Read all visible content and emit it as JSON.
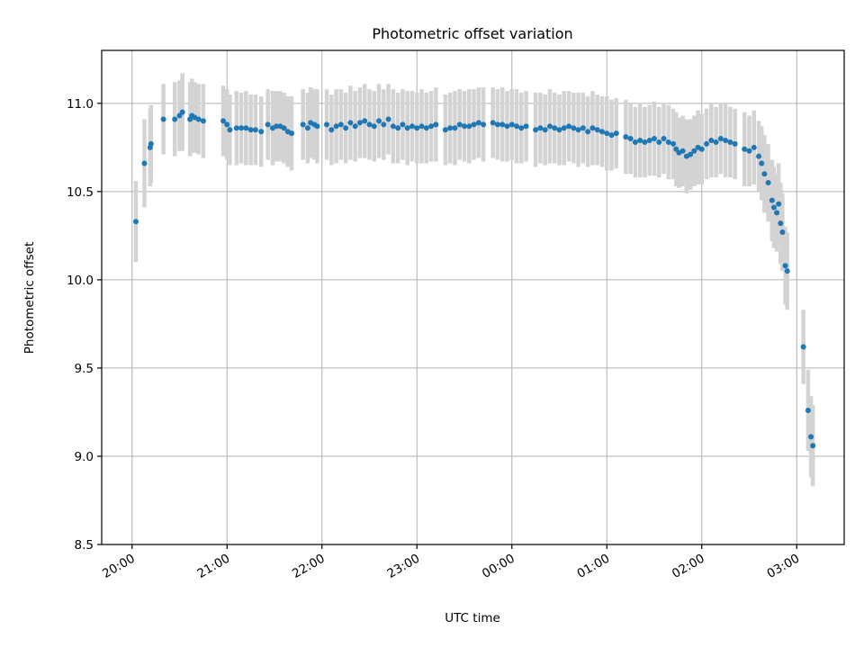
{
  "chart_data": {
    "type": "scatter",
    "title": "Photometric offset variation",
    "xlabel": "UTC time",
    "ylabel": "Photometric offset",
    "x_unit": "hours UTC (values >= 24 are after midnight)",
    "xlim": [
      19.68,
      27.5
    ],
    "ylim": [
      8.5,
      11.3
    ],
    "xticks": [
      {
        "value": 20,
        "label": "20:00"
      },
      {
        "value": 21,
        "label": "21:00"
      },
      {
        "value": 22,
        "label": "22:00"
      },
      {
        "value": 23,
        "label": "23:00"
      },
      {
        "value": 24,
        "label": "00:00"
      },
      {
        "value": 25,
        "label": "01:00"
      },
      {
        "value": 26,
        "label": "02:00"
      },
      {
        "value": 27,
        "label": "03:00"
      }
    ],
    "yticks": [
      {
        "value": 8.5,
        "label": "8.5"
      },
      {
        "value": 9.0,
        "label": "9.0"
      },
      {
        "value": 9.5,
        "label": "9.5"
      },
      {
        "value": 10.0,
        "label": "10.0"
      },
      {
        "value": 10.5,
        "label": "10.5"
      },
      {
        "value": 11.0,
        "label": "11.0"
      }
    ],
    "grid": true,
    "colors": {
      "points": "#1f77b4",
      "errorbars": "#d3d3d3",
      "grid": "#b0b0b0"
    },
    "series": [
      {
        "points": [
          [
            20.04,
            10.33,
            0.23
          ],
          [
            20.13,
            10.66,
            0.25
          ],
          [
            20.19,
            10.75,
            0.22
          ],
          [
            20.2,
            10.77,
            0.22
          ],
          [
            20.33,
            10.91,
            0.2
          ],
          [
            20.45,
            10.91,
            0.21
          ],
          [
            20.5,
            10.93,
            0.2
          ],
          [
            20.53,
            10.95,
            0.22
          ],
          [
            20.61,
            10.91,
            0.21
          ],
          [
            20.63,
            10.93,
            0.21
          ],
          [
            20.66,
            10.92,
            0.2
          ],
          [
            20.7,
            10.91,
            0.2
          ],
          [
            20.75,
            10.9,
            0.21
          ],
          [
            20.96,
            10.9,
            0.2
          ],
          [
            21.0,
            10.88,
            0.2
          ],
          [
            21.03,
            10.85,
            0.2
          ],
          [
            21.1,
            10.86,
            0.21
          ],
          [
            21.15,
            10.86,
            0.2
          ],
          [
            21.2,
            10.86,
            0.21
          ],
          [
            21.25,
            10.85,
            0.2
          ],
          [
            21.3,
            10.85,
            0.2
          ],
          [
            21.36,
            10.84,
            0.2
          ],
          [
            21.43,
            10.88,
            0.2
          ],
          [
            21.48,
            10.86,
            0.21
          ],
          [
            21.52,
            10.87,
            0.2
          ],
          [
            21.56,
            10.87,
            0.2
          ],
          [
            21.6,
            10.86,
            0.2
          ],
          [
            21.64,
            10.84,
            0.2
          ],
          [
            21.68,
            10.83,
            0.21
          ],
          [
            21.8,
            10.88,
            0.2
          ],
          [
            21.85,
            10.86,
            0.2
          ],
          [
            21.88,
            10.89,
            0.2
          ],
          [
            21.92,
            10.88,
            0.2
          ],
          [
            21.95,
            10.87,
            0.21
          ],
          [
            22.05,
            10.88,
            0.2
          ],
          [
            22.1,
            10.85,
            0.2
          ],
          [
            22.15,
            10.87,
            0.21
          ],
          [
            22.2,
            10.88,
            0.2
          ],
          [
            22.25,
            10.86,
            0.2
          ],
          [
            22.3,
            10.89,
            0.21
          ],
          [
            22.35,
            10.87,
            0.2
          ],
          [
            22.4,
            10.89,
            0.2
          ],
          [
            22.45,
            10.9,
            0.21
          ],
          [
            22.5,
            10.88,
            0.2
          ],
          [
            22.55,
            10.87,
            0.2
          ],
          [
            22.6,
            10.9,
            0.21
          ],
          [
            22.65,
            10.88,
            0.2
          ],
          [
            22.7,
            10.91,
            0.2
          ],
          [
            22.75,
            10.87,
            0.21
          ],
          [
            22.8,
            10.86,
            0.2
          ],
          [
            22.85,
            10.88,
            0.2
          ],
          [
            22.9,
            10.86,
            0.21
          ],
          [
            22.95,
            10.87,
            0.2
          ],
          [
            23.0,
            10.86,
            0.2
          ],
          [
            23.05,
            10.87,
            0.21
          ],
          [
            23.1,
            10.86,
            0.2
          ],
          [
            23.15,
            10.87,
            0.2
          ],
          [
            23.2,
            10.88,
            0.21
          ],
          [
            23.3,
            10.85,
            0.2
          ],
          [
            23.35,
            10.86,
            0.2
          ],
          [
            23.4,
            10.86,
            0.21
          ],
          [
            23.45,
            10.88,
            0.2
          ],
          [
            23.5,
            10.87,
            0.2
          ],
          [
            23.55,
            10.87,
            0.21
          ],
          [
            23.6,
            10.88,
            0.2
          ],
          [
            23.65,
            10.89,
            0.2
          ],
          [
            23.7,
            10.88,
            0.21
          ],
          [
            23.8,
            10.89,
            0.2
          ],
          [
            23.85,
            10.88,
            0.2
          ],
          [
            23.9,
            10.88,
            0.21
          ],
          [
            23.95,
            10.87,
            0.2
          ],
          [
            24.0,
            10.88,
            0.2
          ],
          [
            24.05,
            10.87,
            0.21
          ],
          [
            24.1,
            10.86,
            0.2
          ],
          [
            24.15,
            10.87,
            0.2
          ],
          [
            24.25,
            10.85,
            0.21
          ],
          [
            24.3,
            10.86,
            0.2
          ],
          [
            24.35,
            10.85,
            0.2
          ],
          [
            24.4,
            10.87,
            0.21
          ],
          [
            24.45,
            10.86,
            0.2
          ],
          [
            24.5,
            10.85,
            0.2
          ],
          [
            24.55,
            10.86,
            0.21
          ],
          [
            24.6,
            10.87,
            0.2
          ],
          [
            24.65,
            10.86,
            0.2
          ],
          [
            24.7,
            10.85,
            0.21
          ],
          [
            24.75,
            10.86,
            0.2
          ],
          [
            24.8,
            10.84,
            0.2
          ],
          [
            24.85,
            10.86,
            0.21
          ],
          [
            24.9,
            10.85,
            0.2
          ],
          [
            24.95,
            10.84,
            0.2
          ],
          [
            25.0,
            10.83,
            0.21
          ],
          [
            25.05,
            10.82,
            0.2
          ],
          [
            25.1,
            10.83,
            0.2
          ],
          [
            25.2,
            10.81,
            0.21
          ],
          [
            25.25,
            10.8,
            0.2
          ],
          [
            25.3,
            10.78,
            0.2
          ],
          [
            25.35,
            10.79,
            0.21
          ],
          [
            25.4,
            10.78,
            0.2
          ],
          [
            25.45,
            10.79,
            0.2
          ],
          [
            25.5,
            10.8,
            0.21
          ],
          [
            25.55,
            10.78,
            0.2
          ],
          [
            25.6,
            10.8,
            0.2
          ],
          [
            25.65,
            10.78,
            0.21
          ],
          [
            25.7,
            10.77,
            0.2
          ],
          [
            25.73,
            10.74,
            0.21
          ],
          [
            25.76,
            10.72,
            0.2
          ],
          [
            25.8,
            10.73,
            0.2
          ],
          [
            25.84,
            10.7,
            0.21
          ],
          [
            25.88,
            10.71,
            0.2
          ],
          [
            25.92,
            10.73,
            0.2
          ],
          [
            25.96,
            10.75,
            0.21
          ],
          [
            26.0,
            10.74,
            0.2
          ],
          [
            26.05,
            10.77,
            0.2
          ],
          [
            26.1,
            10.79,
            0.21
          ],
          [
            26.15,
            10.78,
            0.2
          ],
          [
            26.2,
            10.8,
            0.2
          ],
          [
            26.25,
            10.79,
            0.21
          ],
          [
            26.3,
            10.78,
            0.2
          ],
          [
            26.35,
            10.77,
            0.2
          ],
          [
            26.45,
            10.74,
            0.21
          ],
          [
            26.5,
            10.73,
            0.2
          ],
          [
            26.55,
            10.75,
            0.21
          ],
          [
            26.6,
            10.7,
            0.2
          ],
          [
            26.63,
            10.66,
            0.21
          ],
          [
            26.66,
            10.6,
            0.22
          ],
          [
            26.7,
            10.55,
            0.22
          ],
          [
            26.74,
            10.45,
            0.23
          ],
          [
            26.76,
            10.41,
            0.23
          ],
          [
            26.79,
            10.38,
            0.22
          ],
          [
            26.81,
            10.43,
            0.23
          ],
          [
            26.83,
            10.32,
            0.23
          ],
          [
            26.85,
            10.27,
            0.22
          ],
          [
            26.88,
            10.08,
            0.22
          ],
          [
            26.9,
            10.05,
            0.22
          ],
          [
            27.07,
            9.62,
            0.21
          ],
          [
            27.12,
            9.26,
            0.23
          ],
          [
            27.15,
            9.11,
            0.23
          ],
          [
            27.17,
            9.06,
            0.23
          ]
        ]
      }
    ]
  }
}
